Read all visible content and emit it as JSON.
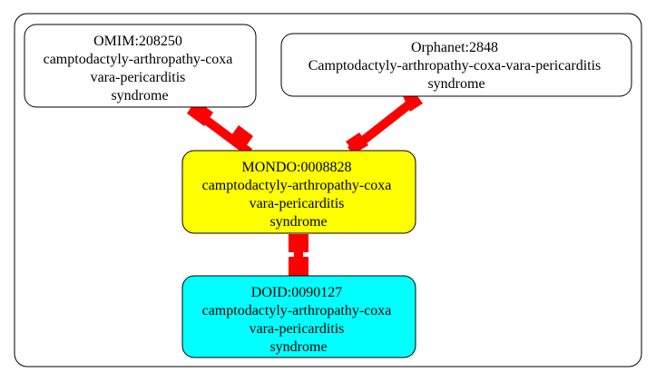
{
  "nodes": {
    "omim": {
      "lines": [
        "OMIM:208250",
        "camptodactyly-arthropathy-coxa",
        "vara-pericarditis",
        "syndrome"
      ],
      "fill": "#ffffff"
    },
    "orphanet": {
      "lines": [
        "Orphanet:2848",
        "Camptodactyly-arthropathy-coxa-vara-pericarditis",
        "syndrome"
      ],
      "fill": "#ffffff"
    },
    "mondo": {
      "lines": [
        "MONDO:0008828",
        "camptodactyly-arthropathy-coxa",
        "vara-pericarditis",
        "syndrome"
      ],
      "fill": "#ffff00"
    },
    "doid": {
      "lines": [
        "DOID:0090127",
        "camptodactyly-arthropathy-coxa",
        "vara-pericarditis",
        "syndrome"
      ],
      "fill": "#00ffff"
    }
  },
  "edge_color": "#ff0000"
}
